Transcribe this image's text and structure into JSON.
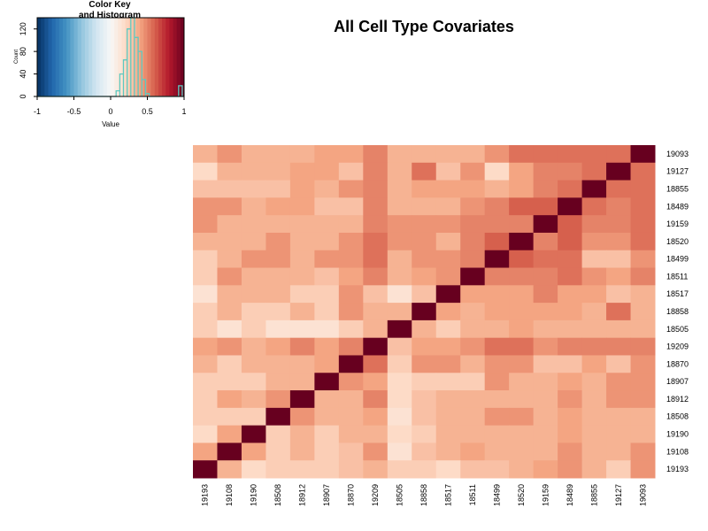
{
  "chart_data": {
    "type": "heatmap",
    "title": "All Cell Type Covariates",
    "row_labels": [
      "19093",
      "19127",
      "18855",
      "18489",
      "19159",
      "18520",
      "18499",
      "18511",
      "18517",
      "18858",
      "18505",
      "19209",
      "18870",
      "18907",
      "18912",
      "18508",
      "19190",
      "19108",
      "19193"
    ],
    "col_labels": [
      "19193",
      "19108",
      "19190",
      "18508",
      "18912",
      "18907",
      "18870",
      "19209",
      "18505",
      "18858",
      "18517",
      "18511",
      "18499",
      "18520",
      "19159",
      "18489",
      "18855",
      "19127",
      "19093"
    ],
    "values": [
      [
        0.35,
        0.45,
        0.35,
        0.35,
        0.35,
        0.4,
        0.4,
        0.5,
        0.35,
        0.35,
        0.35,
        0.35,
        0.45,
        0.55,
        0.55,
        0.55,
        0.55,
        0.55,
        1.0
      ],
      [
        0.2,
        0.35,
        0.35,
        0.35,
        0.4,
        0.4,
        0.3,
        0.5,
        0.35,
        0.55,
        0.3,
        0.45,
        0.2,
        0.4,
        0.5,
        0.5,
        0.55,
        1.0,
        0.55
      ],
      [
        0.3,
        0.3,
        0.3,
        0.3,
        0.4,
        0.35,
        0.45,
        0.5,
        0.35,
        0.4,
        0.4,
        0.4,
        0.35,
        0.4,
        0.5,
        0.55,
        1.0,
        0.55,
        0.55
      ],
      [
        0.45,
        0.45,
        0.35,
        0.4,
        0.4,
        0.3,
        0.3,
        0.5,
        0.35,
        0.35,
        0.35,
        0.45,
        0.5,
        0.6,
        0.6,
        1.0,
        0.55,
        0.5,
        0.55
      ],
      [
        0.45,
        0.35,
        0.35,
        0.35,
        0.35,
        0.35,
        0.35,
        0.5,
        0.45,
        0.45,
        0.45,
        0.5,
        0.5,
        0.5,
        1.0,
        0.6,
        0.5,
        0.5,
        0.55
      ],
      [
        0.35,
        0.35,
        0.35,
        0.45,
        0.35,
        0.35,
        0.45,
        0.55,
        0.45,
        0.45,
        0.35,
        0.5,
        0.6,
        1.0,
        0.5,
        0.6,
        0.45,
        0.45,
        0.55
      ],
      [
        0.25,
        0.35,
        0.45,
        0.45,
        0.35,
        0.45,
        0.45,
        0.55,
        0.35,
        0.45,
        0.45,
        0.5,
        1.0,
        0.6,
        0.55,
        0.55,
        0.3,
        0.3,
        0.45
      ],
      [
        0.25,
        0.45,
        0.35,
        0.35,
        0.35,
        0.3,
        0.4,
        0.5,
        0.35,
        0.4,
        0.45,
        1.0,
        0.5,
        0.5,
        0.5,
        0.55,
        0.45,
        0.4,
        0.5
      ],
      [
        0.15,
        0.35,
        0.35,
        0.35,
        0.25,
        0.25,
        0.45,
        0.3,
        0.15,
        0.3,
        1.0,
        0.4,
        0.4,
        0.4,
        0.5,
        0.4,
        0.4,
        0.3,
        0.35
      ],
      [
        0.25,
        0.35,
        0.25,
        0.25,
        0.35,
        0.25,
        0.45,
        0.35,
        0.35,
        1.0,
        0.4,
        0.35,
        0.4,
        0.4,
        0.4,
        0.4,
        0.35,
        0.55,
        0.35
      ],
      [
        0.25,
        0.15,
        0.25,
        0.15,
        0.15,
        0.15,
        0.25,
        0.35,
        1.0,
        0.35,
        0.25,
        0.35,
        0.35,
        0.4,
        0.35,
        0.35,
        0.35,
        0.35,
        0.35
      ],
      [
        0.4,
        0.45,
        0.35,
        0.4,
        0.5,
        0.4,
        0.5,
        1.0,
        0.3,
        0.4,
        0.4,
        0.45,
        0.55,
        0.55,
        0.45,
        0.5,
        0.5,
        0.5,
        0.5
      ],
      [
        0.35,
        0.25,
        0.35,
        0.35,
        0.35,
        0.4,
        1.0,
        0.55,
        0.25,
        0.45,
        0.45,
        0.35,
        0.45,
        0.45,
        0.3,
        0.3,
        0.4,
        0.3,
        0.45
      ],
      [
        0.25,
        0.25,
        0.25,
        0.35,
        0.35,
        1.0,
        0.45,
        0.4,
        0.2,
        0.25,
        0.25,
        0.25,
        0.45,
        0.35,
        0.35,
        0.4,
        0.35,
        0.45,
        0.45
      ],
      [
        0.25,
        0.4,
        0.35,
        0.45,
        1.0,
        0.35,
        0.35,
        0.5,
        0.2,
        0.3,
        0.35,
        0.35,
        0.35,
        0.35,
        0.35,
        0.45,
        0.35,
        0.45,
        0.45
      ],
      [
        0.25,
        0.25,
        0.25,
        1.0,
        0.45,
        0.35,
        0.35,
        0.4,
        0.15,
        0.3,
        0.35,
        0.35,
        0.45,
        0.45,
        0.35,
        0.4,
        0.35,
        0.35,
        0.35
      ],
      [
        0.2,
        0.4,
        1.0,
        0.25,
        0.35,
        0.25,
        0.35,
        0.35,
        0.2,
        0.25,
        0.35,
        0.35,
        0.35,
        0.35,
        0.35,
        0.4,
        0.35,
        0.35,
        0.35
      ],
      [
        0.4,
        1.0,
        0.4,
        0.25,
        0.35,
        0.25,
        0.3,
        0.45,
        0.15,
        0.3,
        0.35,
        0.4,
        0.35,
        0.35,
        0.35,
        0.45,
        0.35,
        0.35,
        0.45
      ],
      [
        1.0,
        0.35,
        0.2,
        0.25,
        0.25,
        0.25,
        0.3,
        0.35,
        0.25,
        0.25,
        0.2,
        0.3,
        0.3,
        0.35,
        0.4,
        0.45,
        0.35,
        0.25,
        0.45
      ]
    ],
    "color_key": {
      "title_line1": "Color Key",
      "title_line2": "and Histogram",
      "x_label": "Value",
      "y_label": "Count",
      "x_ticks": [
        "-1",
        "-0.5",
        "0",
        "0.5",
        "1"
      ],
      "x_tick_values": [
        -1,
        -0.5,
        0,
        0.5,
        1
      ],
      "y_ticks": [
        "0",
        "40",
        "80",
        "120"
      ],
      "y_tick_values": [
        0,
        40,
        80,
        120
      ],
      "xlim": [
        -1,
        1
      ],
      "ylim": [
        0,
        140
      ],
      "palette": [
        "#053061",
        "#2166ac",
        "#4393c3",
        "#92c5de",
        "#d1e5f0",
        "#f7f7f7",
        "#fddbc7",
        "#f4a582",
        "#d6604d",
        "#b2182b",
        "#67001f"
      ],
      "hist_bins": [
        {
          "x": 0.1,
          "count": 10
        },
        {
          "x": 0.15,
          "count": 40
        },
        {
          "x": 0.2,
          "count": 65
        },
        {
          "x": 0.25,
          "count": 120
        },
        {
          "x": 0.3,
          "count": 140
        },
        {
          "x": 0.35,
          "count": 105
        },
        {
          "x": 0.4,
          "count": 80
        },
        {
          "x": 0.45,
          "count": 30
        },
        {
          "x": 0.5,
          "count": 5
        },
        {
          "x": 0.95,
          "count": 19
        }
      ],
      "hist_color": "#5fc9c0"
    }
  }
}
